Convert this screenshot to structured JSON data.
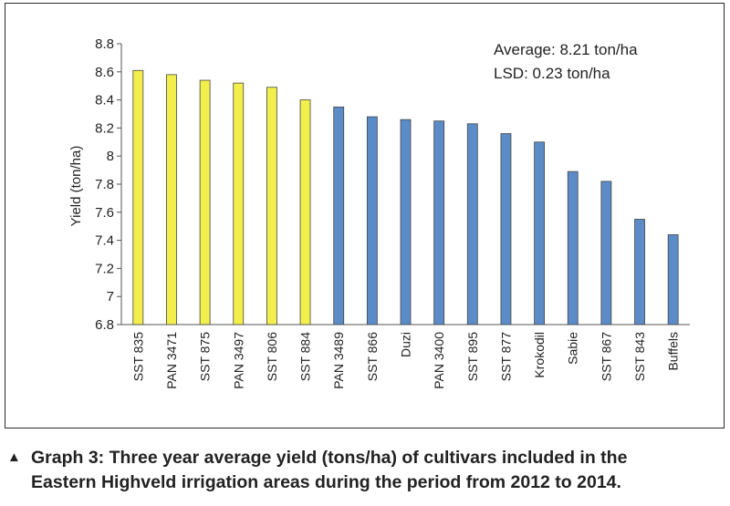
{
  "chart_data": {
    "type": "bar",
    "ylabel": "Yield (ton/ha)",
    "xlabel": "",
    "ylim": [
      6.8,
      8.8
    ],
    "yticks": [
      "6.8",
      "7",
      "7.2",
      "7.4",
      "7.6",
      "7.8",
      "8",
      "8.2",
      "8.4",
      "8.6",
      "8.8"
    ],
    "categories": [
      "SST 835",
      "PAN 3471",
      "SST 875",
      "PAN 3497",
      "SST 806",
      "SST 884",
      "PAN 3489",
      "SST 866",
      "Duzi",
      "PAN 3400",
      "SST 895",
      "SST 877",
      "Krokodil",
      "Sabie",
      "SST 867",
      "SST 843",
      "Buffels"
    ],
    "values": [
      8.61,
      8.58,
      8.54,
      8.52,
      8.49,
      8.4,
      8.35,
      8.28,
      8.26,
      8.25,
      8.23,
      8.16,
      8.1,
      7.89,
      7.82,
      7.55,
      7.44
    ],
    "bar_colors": [
      "#f2ef4c",
      "#f2ef4c",
      "#f2ef4c",
      "#f2ef4c",
      "#f2ef4c",
      "#f2ef4c",
      "#5b8cc8",
      "#5b8cc8",
      "#5b8cc8",
      "#5b8cc8",
      "#5b8cc8",
      "#5b8cc8",
      "#5b8cc8",
      "#5b8cc8",
      "#5b8cc8",
      "#5b8cc8",
      "#5b8cc8"
    ],
    "annotations": [
      "Average: 8.21 ton/ha",
      "LSD: 0.23 ton/ha"
    ],
    "grid": false
  },
  "caption": {
    "arrow": "▲",
    "line1": "Graph 3: Three year average yield (tons/ha) of cultivars included in the",
    "line2": "Eastern Highveld irrigation areas during the period from 2012 to 2014."
  }
}
